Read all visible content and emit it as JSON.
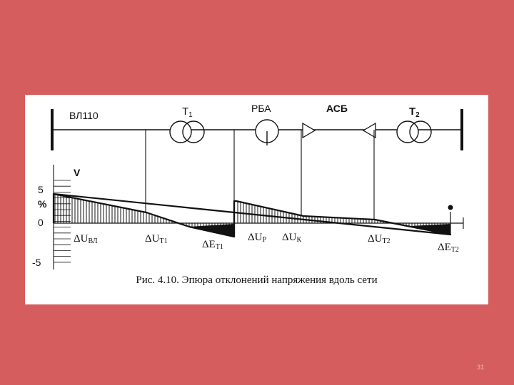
{
  "slide": {
    "caption": "Рис. 4.10. Эпюра отклонений напряжения вдоль сети",
    "page_number": "31"
  },
  "diagram": {
    "line_label": "ВЛ110",
    "transformer_1": {
      "main": "T",
      "sub": "1"
    },
    "regulator_label": "РБА",
    "compensator_label": "АСБ",
    "transformer_2": {
      "main": "T",
      "sub": "2"
    }
  },
  "chart": {
    "y_axis_label": "V",
    "y_unit": "%",
    "y_ticks": [
      "5",
      "0",
      "-5"
    ],
    "drop_labels": [
      {
        "delta": "Δ",
        "main": "U",
        "sub": "ВЛ"
      },
      {
        "delta": "Δ",
        "main": "U",
        "sub": "T1"
      },
      {
        "delta": "Δ",
        "main": "E",
        "sub": "T1"
      },
      {
        "delta": "Δ",
        "main": "U",
        "sub": "Р"
      },
      {
        "delta": "Δ",
        "main": "U",
        "sub": "К"
      },
      {
        "delta": "Δ",
        "main": "U",
        "sub": "T2"
      },
      {
        "delta": "Δ",
        "main": "E",
        "sub": "T2"
      }
    ]
  },
  "colors": {
    "slide_background": "#d55d5d",
    "figure_background": "#ffffff",
    "ink": "#111111"
  }
}
